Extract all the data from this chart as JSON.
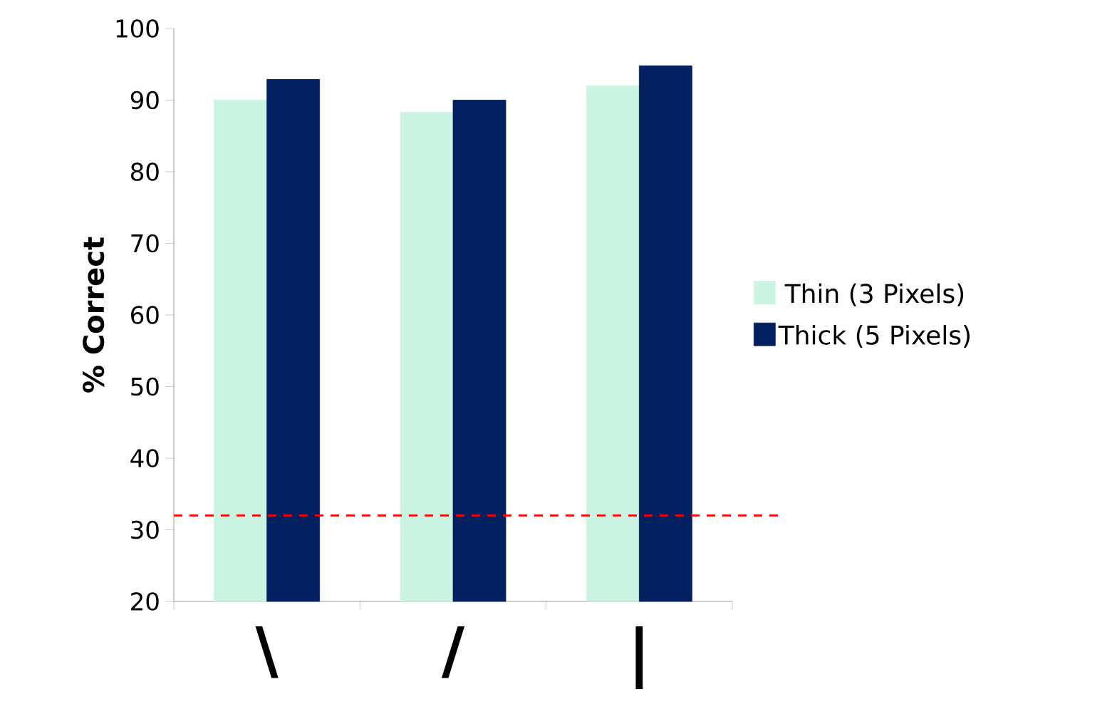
{
  "chart_data": {
    "type": "bar",
    "ylabel": "% Correct",
    "categories": [
      "\\",
      "/",
      "|"
    ],
    "series": [
      {
        "name": "Thin (3 Pixels)",
        "color": "#ccf4e2",
        "values": [
          90,
          88.3,
          92
        ]
      },
      {
        "name": "Thick (5 Pixels)",
        "color": "#022060",
        "values": [
          92.9,
          90,
          94.8
        ]
      }
    ],
    "ylim": [
      20,
      100
    ],
    "yticks": [
      20,
      30,
      40,
      50,
      60,
      70,
      80,
      90,
      100
    ],
    "grid": false,
    "legend": "right",
    "ref_lines": [
      {
        "axis": "y",
        "value": 32,
        "color": "#ff0000",
        "line_style": "dashed"
      }
    ]
  }
}
